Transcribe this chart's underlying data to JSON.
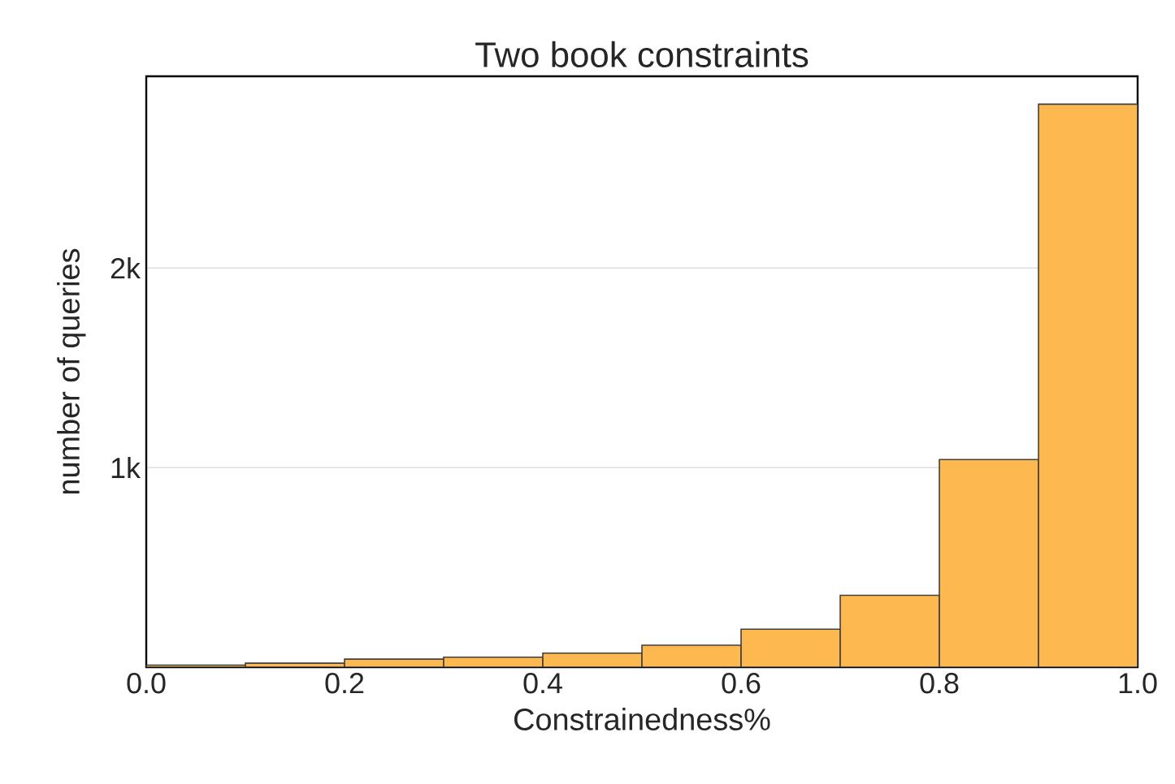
{
  "chart_data": {
    "type": "histogram",
    "title": "Two book constraints",
    "xlabel": "Constrainedness%",
    "ylabel": "number of queries",
    "bins": [
      0.0,
      0.1,
      0.2,
      0.3,
      0.4,
      0.5,
      0.6,
      0.7,
      0.8,
      0.9,
      1.0
    ],
    "values": [
      10,
      20,
      40,
      50,
      70,
      110,
      190,
      360,
      1040,
      2820
    ],
    "color": "#fdb84f",
    "xlim": [
      0.0,
      1.0
    ],
    "xticks": [
      {
        "value": 0.0,
        "label": "0.0"
      },
      {
        "value": 0.2,
        "label": "0.2"
      },
      {
        "value": 0.4,
        "label": "0.4"
      },
      {
        "value": 0.6,
        "label": "0.6"
      },
      {
        "value": 0.8,
        "label": "0.8"
      },
      {
        "value": 1.0,
        "label": "1.0"
      }
    ],
    "ylim": [
      0,
      2960
    ],
    "yticks": [
      {
        "value": 1000,
        "label": "1k"
      },
      {
        "value": 2000,
        "label": "2k"
      }
    ],
    "grid": "y"
  }
}
